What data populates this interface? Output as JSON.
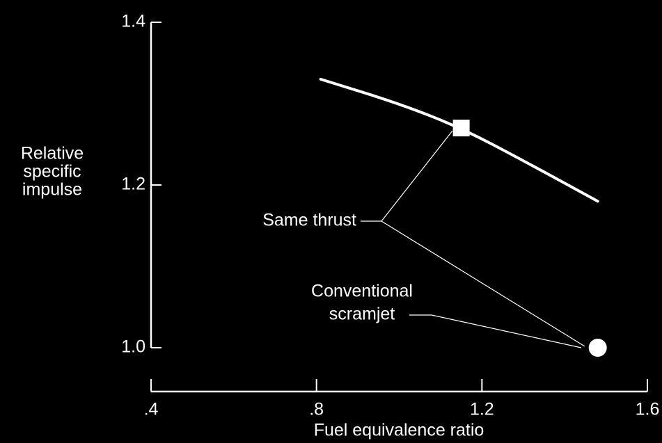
{
  "chart_data": {
    "type": "line",
    "x_label": "Fuel equivalence ratio",
    "y_label": [
      "Relative",
      "specific",
      "impulse"
    ],
    "xlim": [
      0.4,
      1.6
    ],
    "xticks": [
      {
        "value": 0.4,
        "label": ".4"
      },
      {
        "value": 0.8,
        "label": ".8"
      },
      1.2,
      1.6
    ],
    "ylim": [
      1.0,
      1.4
    ],
    "yticks": [
      {
        "value": 1.0,
        "label": "1.0"
      },
      1.2,
      1.4
    ],
    "series": [
      {
        "color": "#ffffff",
        "x": [
          0.81,
          1.0,
          1.15,
          1.3,
          1.48
        ],
        "values": [
          1.33,
          1.3,
          1.27,
          1.23,
          1.18
        ]
      }
    ],
    "markers": [
      {
        "shape": "square",
        "x": 1.15,
        "y": 1.27
      },
      {
        "shape": "circle",
        "x": 1.48,
        "y": 1.0
      }
    ],
    "annotations": [
      [
        "Same thrust"
      ],
      [
        "Conventional",
        "scramjet"
      ]
    ]
  }
}
